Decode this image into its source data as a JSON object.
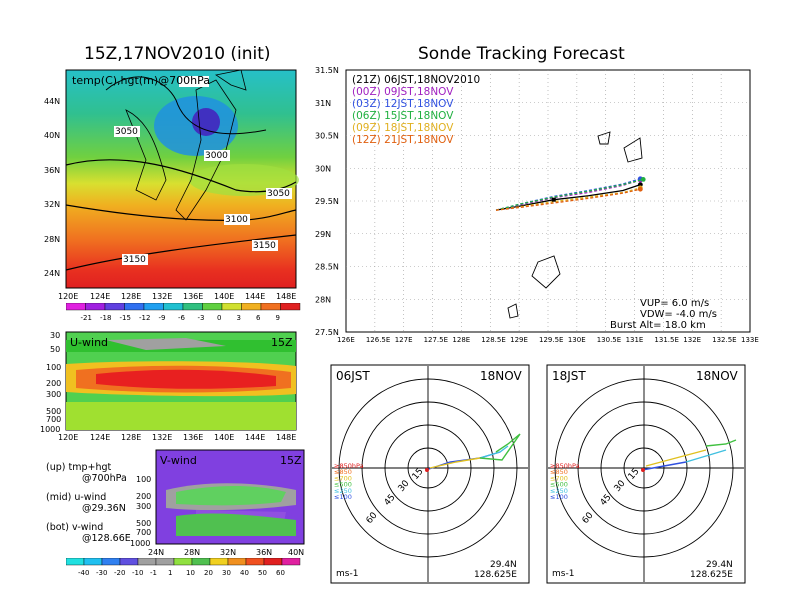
{
  "map_panel": {
    "title": "15Z,17NOV2010 (init)",
    "label": "temp(C),hgt(m)@700hPa",
    "xticks": [
      "120E",
      "124E",
      "128E",
      "132E",
      "136E",
      "140E",
      "144E",
      "148E"
    ],
    "yticks": [
      "24N",
      "28N",
      "32N",
      "36N",
      "40N",
      "44N"
    ],
    "contours": [
      "3000",
      "3050",
      "3000",
      "3050",
      "3100",
      "3150",
      "3150"
    ],
    "colorbar": [
      "-21",
      "-18",
      "-15",
      "-12",
      "-9",
      "-6",
      "-3",
      "0",
      "3",
      "6",
      "9"
    ]
  },
  "uwind_panel": {
    "label": "U-wind",
    "time": "15Z",
    "xticks": [
      "120E",
      "124E",
      "128E",
      "132E",
      "136E",
      "140E",
      "144E",
      "148E"
    ],
    "yticks": [
      "30",
      "50",
      "100",
      "200",
      "300",
      "500",
      "700",
      "1000"
    ]
  },
  "vwind_panel": {
    "label": "V-wind",
    "time": "15Z",
    "xticks": [
      "24N",
      "28N",
      "32N",
      "36N",
      "40N"
    ],
    "yticks": [
      "100",
      "200",
      "300",
      "500",
      "700",
      "1000"
    ],
    "colorbar": [
      "-40",
      "-30",
      "-20",
      "-10",
      "-1",
      "1",
      "10",
      "20",
      "30",
      "40",
      "50",
      "60"
    ]
  },
  "notes": {
    "up": "(up)  tmp+hgt",
    "up2": "@700hPa",
    "mid": "(mid)  u-wind",
    "mid2": "@29.36N",
    "bot": "(bot)  v-wind",
    "bot2": "@128.66E"
  },
  "track_panel": {
    "title": "Sonde Tracking Forecast",
    "xticks": [
      "126E",
      "126.5E",
      "127E",
      "127.5E",
      "128E",
      "128.5E",
      "129E",
      "129.5E",
      "130E",
      "130.5E",
      "131E",
      "131.5E",
      "132E",
      "132.5E",
      "133E"
    ],
    "yticks": [
      "27.5N",
      "28N",
      "28.5N",
      "29N",
      "29.5N",
      "30N",
      "30.5N",
      "31N",
      "31.5N"
    ],
    "legend": [
      {
        "text": "(21Z)  06JST,18NOV2010",
        "color": "#000000"
      },
      {
        "text": "(00Z)  09JST,18NOV",
        "color": "#a020c0"
      },
      {
        "text": "(03Z)  12JST,18NOV",
        "color": "#3050e0"
      },
      {
        "text": "(06Z)  15JST,18NOV",
        "color": "#20b040"
      },
      {
        "text": "(09Z)  18JST,18NOV",
        "color": "#e0b020"
      },
      {
        "text": "(12Z)  21JST,18NOV",
        "color": "#e06010"
      }
    ],
    "vup": "VUP=  6.0  m/s",
    "vdw": "VDW=  -4.0  m/s",
    "burst": "Burst Alt=  18.0  km"
  },
  "polar_left": {
    "time": "06JST",
    "date": "18NOV",
    "rings": [
      "15",
      "30",
      "45",
      "60"
    ],
    "levels": [
      "≥850hPa",
      "≤850",
      "≤700",
      "≤500",
      "≤250",
      "≤100"
    ],
    "unit": "ms-1",
    "lat": "29.4N",
    "lon": "128.625E"
  },
  "polar_right": {
    "time": "18JST",
    "date": "18NOV",
    "rings": [
      "15",
      "30",
      "45",
      "60"
    ],
    "levels": [
      "≥850hPa",
      "≤850",
      "≤700",
      "≤500",
      "≤250",
      "≤100"
    ],
    "unit": "ms-1",
    "lat": "29.4N",
    "lon": "128.625E"
  },
  "chart_data": [
    {
      "type": "heatmap",
      "title": "15Z,17NOV2010 (init)",
      "subtitle": "temp(C),hgt(m)@700hPa",
      "x_range": [
        120,
        149
      ],
      "y_range": [
        22,
        48
      ],
      "colorbar_levels": [
        -21,
        -18,
        -15,
        -12,
        -9,
        -6,
        -3,
        0,
        3,
        6,
        9
      ],
      "contour_labels": [
        3000,
        3050,
        3100,
        3150
      ]
    },
    {
      "type": "heatmap",
      "title": "U-wind",
      "x_range": [
        120,
        149
      ],
      "y_levels_hPa": [
        30,
        50,
        100,
        200,
        300,
        500,
        700,
        1000
      ]
    },
    {
      "type": "heatmap",
      "title": "V-wind",
      "x_range": [
        24,
        40
      ],
      "y_levels_hPa": [
        100,
        200,
        300,
        500,
        700,
        1000
      ],
      "colorbar_levels": [
        -40,
        -30,
        -20,
        -10,
        -1,
        1,
        10,
        20,
        30,
        40,
        50,
        60
      ]
    },
    {
      "type": "line",
      "title": "Sonde Tracking Forecast",
      "x_range": [
        126,
        133
      ],
      "y_range": [
        27.5,
        31.5
      ],
      "series": [
        {
          "name": "(21Z)  06JST,18NOV2010",
          "color": "#000000",
          "x": [
            128.6,
            129.0,
            129.6,
            130.2,
            130.8,
            131.1
          ],
          "y": [
            29.36,
            29.42,
            29.52,
            29.58,
            29.66,
            29.75
          ]
        },
        {
          "name": "(00Z)  09JST,18NOV",
          "color": "#a020c0",
          "x": [
            128.6,
            129.0,
            129.6,
            130.2,
            130.8,
            131.1
          ],
          "y": [
            29.36,
            29.44,
            29.55,
            29.63,
            29.74,
            29.82
          ]
        },
        {
          "name": "(03Z)  12JST,18NOV",
          "color": "#3050e0",
          "x": [
            128.6,
            129.0,
            129.6,
            130.2,
            130.8,
            131.1
          ],
          "y": [
            29.36,
            29.45,
            29.57,
            29.66,
            29.76,
            29.84
          ]
        },
        {
          "name": "(06Z)  15JST,18NOV",
          "color": "#20b040",
          "x": [
            128.6,
            129.0,
            129.6,
            130.2,
            130.8,
            131.15
          ],
          "y": [
            29.36,
            29.45,
            29.56,
            29.65,
            29.75,
            29.83
          ]
        },
        {
          "name": "(09Z)  18JST,18NOV",
          "color": "#e0b020",
          "x": [
            128.6,
            129.0,
            129.6,
            130.2,
            130.8,
            131.1
          ],
          "y": [
            29.36,
            29.41,
            29.49,
            29.56,
            29.63,
            29.7
          ]
        },
        {
          "name": "(12Z)  21JST,18NOV",
          "color": "#e06010",
          "x": [
            128.6,
            129.0,
            129.6,
            130.2,
            130.8,
            131.1
          ],
          "y": [
            29.36,
            29.4,
            29.47,
            29.54,
            29.62,
            29.68
          ]
        }
      ]
    }
  ]
}
